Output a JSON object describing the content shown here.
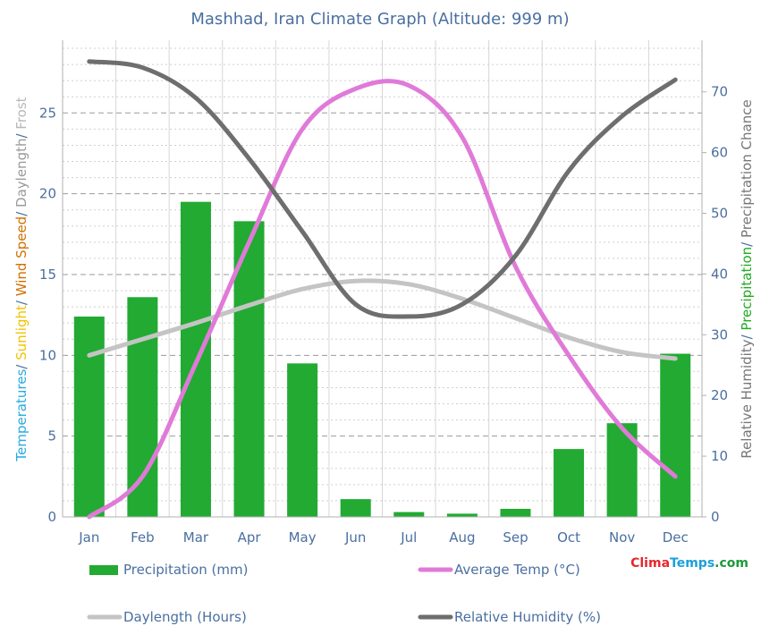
{
  "chart_data": {
    "type": "bar+line",
    "title": "Mashhad, Iran Climate Graph (Altitude: 999 m)",
    "categories": [
      "Jan",
      "Feb",
      "Mar",
      "Apr",
      "May",
      "Jun",
      "Jul",
      "Aug",
      "Sep",
      "Oct",
      "Nov",
      "Dec"
    ],
    "left_axis": {
      "ylim": [
        0,
        29.5
      ],
      "ticks": [
        0,
        5,
        10,
        15,
        20,
        25
      ],
      "label_parts": [
        {
          "text": "Temperatures",
          "color": "#29aadf"
        },
        {
          "text": "/ ",
          "color": "#4a6fa0"
        },
        {
          "text": "Sunlight",
          "color": "#f2c200"
        },
        {
          "text": "/ ",
          "color": "#4a6fa0"
        },
        {
          "text": "Wind Speed",
          "color": "#d07000"
        },
        {
          "text": "/ ",
          "color": "#4a6fa0"
        },
        {
          "text": "Daylength",
          "color": "#9a9a9a"
        },
        {
          "text": "/ ",
          "color": "#4a6fa0"
        },
        {
          "text": "Frost",
          "color": "#b8b8b8"
        }
      ]
    },
    "right_axis": {
      "ylim": [
        0,
        78.5
      ],
      "ticks": [
        0,
        10,
        20,
        30,
        40,
        50,
        60,
        70
      ],
      "label_parts": [
        {
          "text": "Relative Humidity",
          "color": "#777777"
        },
        {
          "text": "/ ",
          "color": "#4a6fa0"
        },
        {
          "text": "Precipitation",
          "color": "#22aa22"
        },
        {
          "text": "/ ",
          "color": "#4a6fa0"
        },
        {
          "text": "Precipitation Chance",
          "color": "#777777"
        }
      ]
    },
    "grid": true,
    "series": [
      {
        "name": "Precipitation (mm)",
        "kind": "bar",
        "axis": "left",
        "color": "#22aa33",
        "values": [
          12.4,
          13.6,
          19.5,
          18.3,
          9.5,
          1.1,
          0.3,
          0.2,
          0.5,
          4.2,
          5.8,
          10.1
        ]
      },
      {
        "name": "Average Temp (°C)",
        "kind": "line",
        "axis": "left",
        "color": "#e07ad8",
        "values": [
          0.0,
          2.5,
          9.5,
          17.0,
          24.0,
          26.5,
          26.7,
          23.5,
          15.5,
          10.0,
          5.5,
          2.5
        ]
      },
      {
        "name": "Daylength (Hours)",
        "kind": "line",
        "axis": "left",
        "color": "#c4c4c4",
        "values": [
          10.0,
          11.0,
          12.0,
          13.1,
          14.1,
          14.6,
          14.4,
          13.5,
          12.3,
          11.1,
          10.2,
          9.8
        ]
      },
      {
        "name": "Relative Humidity (%)",
        "kind": "line",
        "axis": "right",
        "color": "#6e6e6e",
        "values": [
          75,
          74,
          69,
          59,
          47,
          35,
          33,
          35,
          43,
          57,
          66,
          72
        ]
      }
    ],
    "legend_position": "bottom"
  },
  "brand": {
    "part1": "Clima",
    "part2": "Temps",
    "part3": ".com",
    "color1": "#e8262e",
    "color2": "#1aa0d8",
    "color3": "#1a9a3a"
  }
}
